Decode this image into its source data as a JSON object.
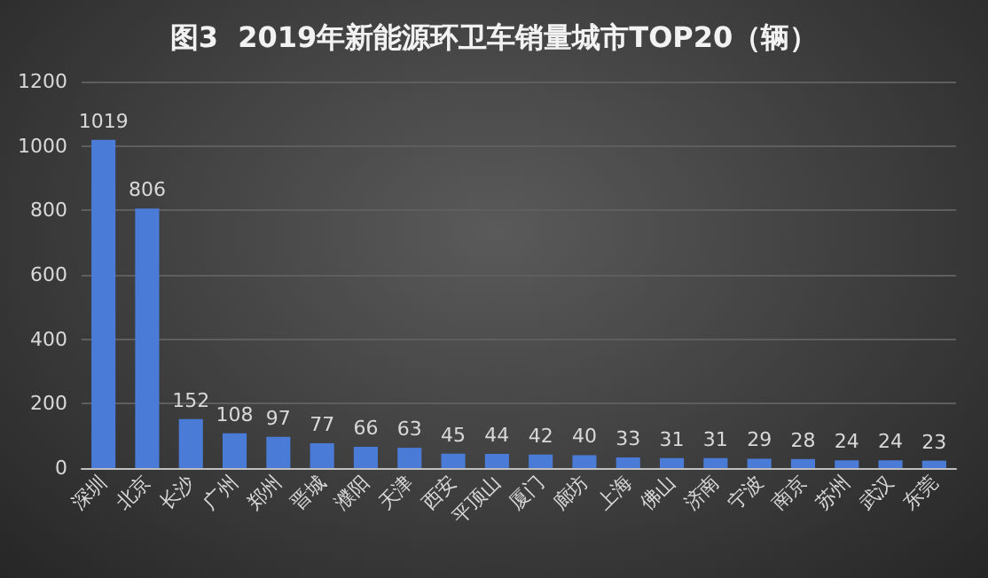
{
  "chart_data": {
    "type": "bar",
    "title": "图3  2019年新能源环卫车销量城市TOP20（辆）",
    "categories": [
      "深圳",
      "北京",
      "长沙",
      "广州",
      "郑州",
      "晋城",
      "濮阳",
      "天津",
      "西安",
      "平顶山",
      "厦门",
      "廊坊",
      "上海",
      "佛山",
      "济南",
      "宁波",
      "南京",
      "苏州",
      "武汉",
      "东莞"
    ],
    "values": [
      1019,
      806,
      152,
      108,
      97,
      77,
      66,
      63,
      45,
      44,
      42,
      40,
      33,
      31,
      31,
      29,
      28,
      24,
      24,
      23
    ],
    "color": "#4a7bd6",
    "ylim": [
      0,
      1200
    ],
    "yticks": [
      0,
      200,
      400,
      600,
      800,
      1000,
      1200
    ],
    "grid": "y",
    "data_labels": true
  }
}
